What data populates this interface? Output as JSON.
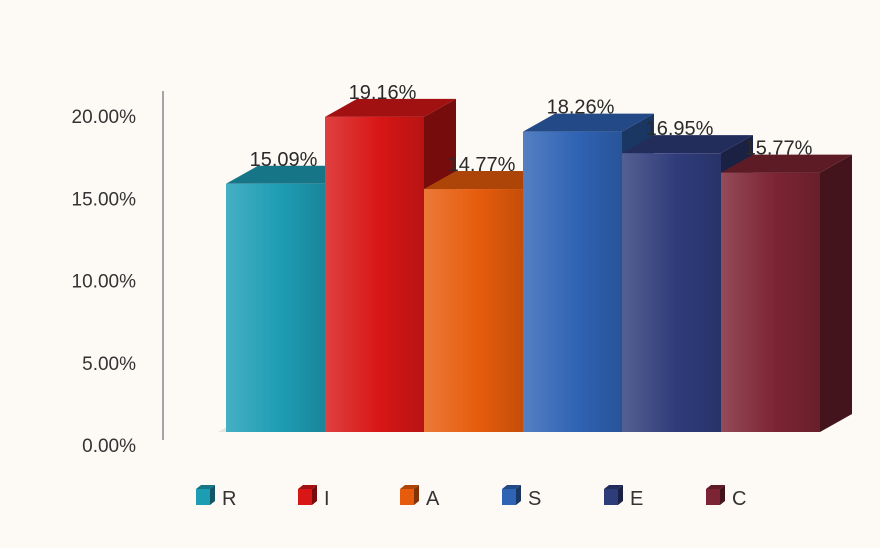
{
  "chart_data": {
    "type": "bar",
    "style": "3d-column",
    "categories": [
      "R",
      "I",
      "A",
      "S",
      "E",
      "C"
    ],
    "values": [
      15.09,
      19.16,
      14.77,
      18.26,
      16.95,
      15.77
    ],
    "value_labels": [
      "15.09%",
      "19.16%",
      "14.77%",
      "18.26%",
      "16.95%",
      "15.77%"
    ],
    "colors": [
      "#1d9db4",
      "#d81616",
      "#e65c0c",
      "#2f63b4",
      "#2f3c7a",
      "#7c2433"
    ],
    "ylim": [
      0,
      20
    ],
    "yticks": [
      {
        "value": 0,
        "label": "0.00%"
      },
      {
        "value": 5,
        "label": "5.00%"
      },
      {
        "value": 10,
        "label": "10.00%"
      },
      {
        "value": 15,
        "label": "15.00%"
      },
      {
        "value": 20,
        "label": "20.00%"
      }
    ],
    "grid": false,
    "legend": {
      "position": "bottom",
      "items": [
        "R",
        "I",
        "A",
        "S",
        "E",
        "C"
      ]
    }
  }
}
